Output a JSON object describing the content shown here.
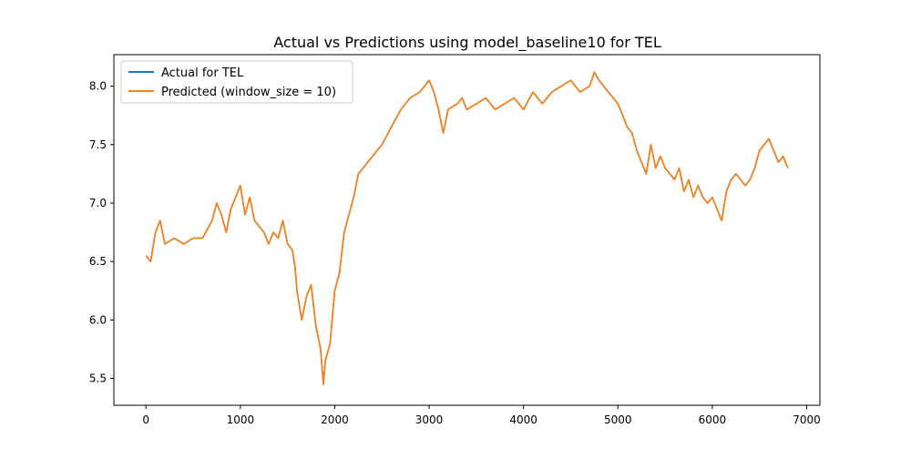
{
  "chart_data": {
    "type": "line",
    "title": "Actual vs Predictions using model_baseline10 for TEL",
    "xlabel": "",
    "ylabel": "",
    "xlim": [
      -340,
      7140
    ],
    "ylim": [
      5.27,
      8.27
    ],
    "grid": false,
    "legend_position": "top-left",
    "xticks": [
      0,
      1000,
      2000,
      3000,
      4000,
      5000,
      6000,
      7000
    ],
    "xtick_labels": [
      "0",
      "1000",
      "2000",
      "3000",
      "4000",
      "5000",
      "6000",
      "7000"
    ],
    "yticks": [
      5.5,
      6.0,
      6.5,
      7.0,
      7.5,
      8.0
    ],
    "ytick_labels": [
      "5.5",
      "6.0",
      "6.5",
      "7.0",
      "7.5",
      "8.0"
    ],
    "series": [
      {
        "name": "Actual for TEL",
        "color": "#1f77b4",
        "x": [
          0,
          50,
          100,
          150,
          200,
          300,
          400,
          500,
          600,
          700,
          750,
          800,
          850,
          900,
          950,
          1000,
          1050,
          1100,
          1150,
          1200,
          1250,
          1300,
          1350,
          1400,
          1450,
          1500,
          1550,
          1580,
          1600,
          1650,
          1700,
          1750,
          1800,
          1850,
          1880,
          1900,
          1950,
          2000,
          2050,
          2100,
          2150,
          2200,
          2250,
          2300,
          2400,
          2500,
          2600,
          2700,
          2800,
          2900,
          3000,
          3050,
          3100,
          3150,
          3200,
          3300,
          3350,
          3400,
          3500,
          3600,
          3700,
          3800,
          3900,
          4000,
          4100,
          4200,
          4300,
          4400,
          4500,
          4600,
          4700,
          4750,
          4800,
          4850,
          4900,
          4950,
          5000,
          5050,
          5100,
          5150,
          5200,
          5250,
          5300,
          5350,
          5400,
          5450,
          5500,
          5550,
          5600,
          5650,
          5700,
          5750,
          5800,
          5850,
          5900,
          5950,
          6000,
          6050,
          6100,
          6150,
          6200,
          6250,
          6300,
          6350,
          6400,
          6450,
          6500,
          6550,
          6600,
          6650,
          6700,
          6750,
          6800
        ],
        "y": [
          6.55,
          6.5,
          6.75,
          6.85,
          6.65,
          6.7,
          6.65,
          6.7,
          6.7,
          6.85,
          7.0,
          6.9,
          6.75,
          6.95,
          7.05,
          7.15,
          6.9,
          7.05,
          6.85,
          6.8,
          6.75,
          6.65,
          6.75,
          6.7,
          6.85,
          6.65,
          6.6,
          6.45,
          6.25,
          6.0,
          6.2,
          6.3,
          5.95,
          5.75,
          5.45,
          5.65,
          5.8,
          6.25,
          6.4,
          6.75,
          6.9,
          7.05,
          7.25,
          7.3,
          7.4,
          7.5,
          7.65,
          7.8,
          7.9,
          7.95,
          8.05,
          7.95,
          7.8,
          7.6,
          7.8,
          7.85,
          7.9,
          7.8,
          7.85,
          7.9,
          7.8,
          7.85,
          7.9,
          7.8,
          7.95,
          7.85,
          7.95,
          8.0,
          8.05,
          7.95,
          8.0,
          8.12,
          8.05,
          8.0,
          7.95,
          7.9,
          7.85,
          7.75,
          7.65,
          7.6,
          7.45,
          7.35,
          7.25,
          7.5,
          7.3,
          7.4,
          7.3,
          7.25,
          7.2,
          7.3,
          7.1,
          7.2,
          7.05,
          7.15,
          7.05,
          7.0,
          7.05,
          6.95,
          6.85,
          7.1,
          7.2,
          7.25,
          7.2,
          7.15,
          7.2,
          7.3,
          7.45,
          7.5,
          7.55,
          7.45,
          7.35,
          7.4,
          7.3
        ]
      },
      {
        "name": "Predicted (window_size = 10)",
        "color": "#ff7f0e",
        "x": [
          0,
          50,
          100,
          150,
          200,
          300,
          400,
          500,
          600,
          700,
          750,
          800,
          850,
          900,
          950,
          1000,
          1050,
          1100,
          1150,
          1200,
          1250,
          1300,
          1350,
          1400,
          1450,
          1500,
          1550,
          1580,
          1600,
          1650,
          1700,
          1750,
          1800,
          1850,
          1880,
          1900,
          1950,
          2000,
          2050,
          2100,
          2150,
          2200,
          2250,
          2300,
          2400,
          2500,
          2600,
          2700,
          2800,
          2900,
          3000,
          3050,
          3100,
          3150,
          3200,
          3300,
          3350,
          3400,
          3500,
          3600,
          3700,
          3800,
          3900,
          4000,
          4100,
          4200,
          4300,
          4400,
          4500,
          4600,
          4700,
          4750,
          4800,
          4850,
          4900,
          4950,
          5000,
          5050,
          5100,
          5150,
          5200,
          5250,
          5300,
          5350,
          5400,
          5450,
          5500,
          5550,
          5600,
          5650,
          5700,
          5750,
          5800,
          5850,
          5900,
          5950,
          6000,
          6050,
          6100,
          6150,
          6200,
          6250,
          6300,
          6350,
          6400,
          6450,
          6500,
          6550,
          6600,
          6650,
          6700,
          6750,
          6800
        ],
        "y": [
          6.55,
          6.5,
          6.75,
          6.85,
          6.65,
          6.7,
          6.65,
          6.7,
          6.7,
          6.85,
          7.0,
          6.9,
          6.75,
          6.95,
          7.05,
          7.15,
          6.9,
          7.05,
          6.85,
          6.8,
          6.75,
          6.65,
          6.75,
          6.7,
          6.85,
          6.65,
          6.6,
          6.45,
          6.25,
          6.0,
          6.2,
          6.3,
          5.95,
          5.75,
          5.45,
          5.65,
          5.8,
          6.25,
          6.4,
          6.75,
          6.9,
          7.05,
          7.25,
          7.3,
          7.4,
          7.5,
          7.65,
          7.8,
          7.9,
          7.95,
          8.05,
          7.95,
          7.8,
          7.6,
          7.8,
          7.85,
          7.9,
          7.8,
          7.85,
          7.9,
          7.8,
          7.85,
          7.9,
          7.8,
          7.95,
          7.85,
          7.95,
          8.0,
          8.05,
          7.95,
          8.0,
          8.12,
          8.05,
          8.0,
          7.95,
          7.9,
          7.85,
          7.75,
          7.65,
          7.6,
          7.45,
          7.35,
          7.25,
          7.5,
          7.3,
          7.4,
          7.3,
          7.25,
          7.2,
          7.3,
          7.1,
          7.2,
          7.05,
          7.15,
          7.05,
          7.0,
          7.05,
          6.95,
          6.85,
          7.1,
          7.2,
          7.25,
          7.2,
          7.15,
          7.2,
          7.3,
          7.45,
          7.5,
          7.55,
          7.45,
          7.35,
          7.4,
          7.3
        ]
      }
    ]
  }
}
